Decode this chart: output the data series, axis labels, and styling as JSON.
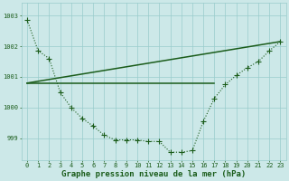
{
  "line1_x": [
    0,
    1,
    2,
    3,
    4,
    5,
    6,
    7,
    8,
    9,
    10,
    11,
    12,
    13,
    14,
    15,
    16,
    17,
    18,
    19,
    20,
    21,
    22,
    23
  ],
  "line1_y": [
    1002.85,
    1001.85,
    1001.6,
    1000.5,
    1000.0,
    999.65,
    999.4,
    999.1,
    998.95,
    998.95,
    998.95,
    998.9,
    998.9,
    998.55,
    998.55,
    998.6,
    999.55,
    1000.3,
    1000.75,
    1001.05,
    1001.3,
    1001.5,
    1001.85,
    1002.15
  ],
  "line2_x": [
    0,
    17
  ],
  "line2_y": [
    1000.8,
    1000.8
  ],
  "line3_x": [
    0,
    23
  ],
  "line3_y": [
    1000.8,
    1002.15
  ],
  "line_color": "#1a5c1a",
  "bg_color": "#cce8e8",
  "grid_color": "#99cccc",
  "xlabel": "Graphe pression niveau de la mer (hPa)",
  "ylim": [
    998.3,
    1003.4
  ],
  "xlim": [
    -0.5,
    23.5
  ],
  "yticks": [
    999,
    1000,
    1001,
    1002,
    1003
  ],
  "xticks": [
    0,
    1,
    2,
    3,
    4,
    5,
    6,
    7,
    8,
    9,
    10,
    11,
    12,
    13,
    14,
    15,
    16,
    17,
    18,
    19,
    20,
    21,
    22,
    23
  ],
  "tick_fontsize": 5.0,
  "xlabel_fontsize": 6.5,
  "marker_size": 2.2,
  "linewidth_curve": 0.8,
  "linewidth_flat": 1.1
}
